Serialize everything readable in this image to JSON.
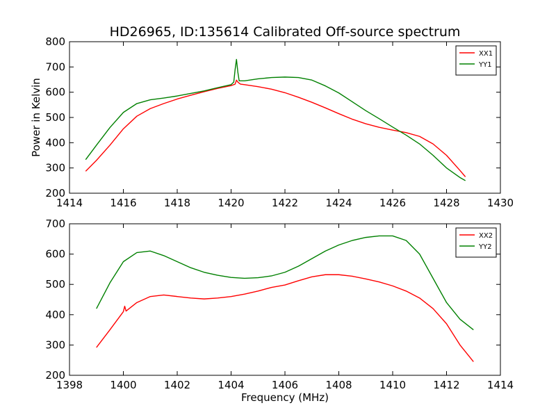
{
  "figure": {
    "title": "HD26965, ID:135614 Calibrated Off-source spectrum"
  },
  "chart_data": [
    {
      "type": "line",
      "title": "HD26965, ID:135614 Calibrated Off-source spectrum",
      "xlabel": "",
      "ylabel": "Power in Kelvin",
      "xlim": [
        1414,
        1430
      ],
      "ylim": [
        200,
        800
      ],
      "xticks": [
        1414,
        1416,
        1418,
        1420,
        1422,
        1424,
        1426,
        1428,
        1430
      ],
      "yticks": [
        200,
        300,
        400,
        500,
        600,
        700,
        800
      ],
      "legend_position": "top-right",
      "grid": false,
      "series": [
        {
          "name": "XX1",
          "color": "#ff0000",
          "x": [
            1414.6,
            1415.0,
            1415.5,
            1416.0,
            1416.5,
            1417.0,
            1417.5,
            1418.0,
            1418.5,
            1419.0,
            1419.5,
            1420.0,
            1420.15,
            1420.2,
            1420.25,
            1420.35,
            1420.5,
            1421.0,
            1421.5,
            1422.0,
            1422.5,
            1423.0,
            1423.5,
            1424.0,
            1424.5,
            1425.0,
            1425.5,
            1426.0,
            1426.5,
            1427.0,
            1427.5,
            1428.0,
            1428.5,
            1428.7
          ],
          "y": [
            287,
            330,
            390,
            455,
            505,
            535,
            555,
            573,
            588,
            602,
            615,
            626,
            632,
            648,
            640,
            632,
            630,
            622,
            612,
            598,
            580,
            560,
            538,
            515,
            493,
            475,
            461,
            450,
            440,
            425,
            395,
            350,
            290,
            265
          ]
        },
        {
          "name": "YY1",
          "color": "#008000",
          "x": [
            1414.6,
            1415.0,
            1415.5,
            1416.0,
            1416.5,
            1417.0,
            1417.5,
            1418.0,
            1418.5,
            1419.0,
            1419.5,
            1420.0,
            1420.1,
            1420.15,
            1420.2,
            1420.25,
            1420.3,
            1420.5,
            1421.0,
            1421.5,
            1422.0,
            1422.5,
            1423.0,
            1423.5,
            1424.0,
            1424.5,
            1425.0,
            1425.5,
            1426.0,
            1426.5,
            1427.0,
            1427.5,
            1428.0,
            1428.5,
            1428.7
          ],
          "y": [
            333,
            390,
            460,
            520,
            555,
            570,
            577,
            585,
            595,
            605,
            618,
            630,
            640,
            690,
            730,
            680,
            645,
            645,
            653,
            658,
            660,
            658,
            648,
            625,
            597,
            562,
            527,
            495,
            462,
            430,
            395,
            350,
            300,
            262,
            250
          ]
        }
      ]
    },
    {
      "type": "line",
      "title": "",
      "xlabel": "Frequency (MHz)",
      "ylabel": "",
      "xlim": [
        1398,
        1414
      ],
      "ylim": [
        200,
        700
      ],
      "xticks": [
        1398,
        1400,
        1402,
        1404,
        1406,
        1408,
        1410,
        1412,
        1414
      ],
      "yticks": [
        200,
        300,
        400,
        500,
        600,
        700
      ],
      "legend_position": "top-right",
      "grid": false,
      "series": [
        {
          "name": "XX2",
          "color": "#ff0000",
          "x": [
            1399.0,
            1399.5,
            1400.0,
            1400.05,
            1400.1,
            1400.5,
            1401.0,
            1401.5,
            1402.0,
            1402.5,
            1403.0,
            1403.5,
            1404.0,
            1404.5,
            1405.0,
            1405.5,
            1406.0,
            1406.5,
            1407.0,
            1407.5,
            1408.0,
            1408.5,
            1409.0,
            1409.5,
            1410.0,
            1410.5,
            1411.0,
            1411.5,
            1412.0,
            1412.5,
            1413.0
          ],
          "y": [
            292,
            350,
            410,
            428,
            412,
            440,
            460,
            465,
            460,
            455,
            452,
            455,
            460,
            468,
            478,
            490,
            498,
            512,
            525,
            532,
            532,
            527,
            518,
            508,
            495,
            478,
            455,
            420,
            370,
            300,
            245
          ]
        },
        {
          "name": "YY2",
          "color": "#008000",
          "x": [
            1399.0,
            1399.5,
            1400.0,
            1400.5,
            1401.0,
            1401.5,
            1402.0,
            1402.5,
            1403.0,
            1403.5,
            1404.0,
            1404.5,
            1405.0,
            1405.5,
            1406.0,
            1406.5,
            1407.0,
            1407.5,
            1408.0,
            1408.5,
            1409.0,
            1409.5,
            1410.0,
            1410.5,
            1411.0,
            1411.5,
            1412.0,
            1412.5,
            1413.0
          ],
          "y": [
            420,
            505,
            575,
            605,
            610,
            595,
            575,
            555,
            540,
            530,
            523,
            520,
            522,
            528,
            540,
            560,
            585,
            610,
            630,
            645,
            655,
            660,
            660,
            645,
            600,
            520,
            440,
            385,
            350
          ]
        }
      ]
    }
  ]
}
